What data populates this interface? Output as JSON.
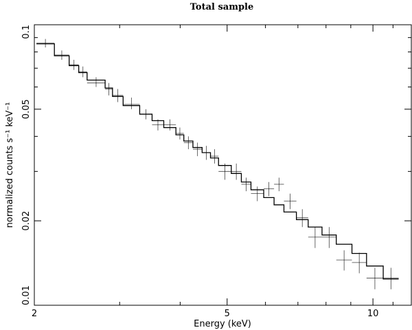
{
  "chart_data": {
    "type": "line",
    "title": "Total sample",
    "xlabel": "Energy (keV)",
    "ylabel": "normalized counts s⁻¹ keV⁻¹",
    "x_scale": "log",
    "y_scale": "log",
    "xlim": [
      2,
      12
    ],
    "ylim": [
      0.01,
      0.1
    ],
    "x_tick_labels": [
      {
        "value": 2,
        "label": "2"
      },
      {
        "value": 5,
        "label": "5"
      },
      {
        "value": 10,
        "label": "10"
      }
    ],
    "x_minor_ticks": [
      3,
      4,
      6,
      7,
      8,
      9,
      11
    ],
    "y_tick_labels": [
      {
        "value": 0.01,
        "label": "0.01"
      },
      {
        "value": 0.02,
        "label": "0.02"
      },
      {
        "value": 0.05,
        "label": "0.05"
      },
      {
        "value": 0.1,
        "label": "0.1"
      }
    ],
    "y_minor_ticks": [
      0.03,
      0.04,
      0.06,
      0.07,
      0.08,
      0.09
    ],
    "grid": false,
    "series": [
      {
        "kind": "data-crosses",
        "color": "#000000",
        "points": [
          {
            "x_lo": 2.02,
            "x_hi": 2.2,
            "y": 0.086,
            "y_lo": 0.083,
            "y_hi": 0.089
          },
          {
            "x_lo": 2.2,
            "x_hi": 2.36,
            "y": 0.078,
            "y_lo": 0.075,
            "y_hi": 0.081
          },
          {
            "x_lo": 2.36,
            "x_hi": 2.47,
            "y": 0.072,
            "y_lo": 0.069,
            "y_hi": 0.075
          },
          {
            "x_lo": 2.47,
            "x_hi": 2.57,
            "y": 0.068,
            "y_lo": 0.065,
            "y_hi": 0.071
          },
          {
            "x_lo": 2.57,
            "x_hi": 2.8,
            "y": 0.062,
            "y_lo": 0.06,
            "y_hi": 0.065
          },
          {
            "x_lo": 2.8,
            "x_hi": 2.9,
            "y": 0.059,
            "y_lo": 0.056,
            "y_hi": 0.062
          },
          {
            "x_lo": 2.9,
            "x_hi": 3.05,
            "y": 0.056,
            "y_lo": 0.053,
            "y_hi": 0.059
          },
          {
            "x_lo": 3.05,
            "x_hi": 3.3,
            "y": 0.052,
            "y_lo": 0.05,
            "y_hi": 0.055
          },
          {
            "x_lo": 3.3,
            "x_hi": 3.5,
            "y": 0.048,
            "y_lo": 0.046,
            "y_hi": 0.05
          },
          {
            "x_lo": 3.5,
            "x_hi": 3.7,
            "y": 0.044,
            "y_lo": 0.042,
            "y_hi": 0.046
          },
          {
            "x_lo": 3.7,
            "x_hi": 3.92,
            "y": 0.044,
            "y_lo": 0.042,
            "y_hi": 0.046
          },
          {
            "x_lo": 3.92,
            "x_hi": 4.07,
            "y": 0.041,
            "y_lo": 0.039,
            "y_hi": 0.043
          },
          {
            "x_lo": 4.07,
            "x_hi": 4.25,
            "y": 0.038,
            "y_lo": 0.036,
            "y_hi": 0.04
          },
          {
            "x_lo": 4.25,
            "x_hi": 4.44,
            "y": 0.036,
            "y_lo": 0.034,
            "y_hi": 0.038
          },
          {
            "x_lo": 4.44,
            "x_hi": 4.62,
            "y": 0.035,
            "y_lo": 0.033,
            "y_hi": 0.037
          },
          {
            "x_lo": 4.62,
            "x_hi": 4.8,
            "y": 0.034,
            "y_lo": 0.032,
            "y_hi": 0.036
          },
          {
            "x_lo": 4.8,
            "x_hi": 5.1,
            "y": 0.03,
            "y_lo": 0.028,
            "y_hi": 0.032
          },
          {
            "x_lo": 5.1,
            "x_hi": 5.35,
            "y": 0.03,
            "y_lo": 0.028,
            "y_hi": 0.032
          },
          {
            "x_lo": 5.35,
            "x_hi": 5.6,
            "y": 0.027,
            "y_lo": 0.0255,
            "y_hi": 0.0285
          },
          {
            "x_lo": 5.6,
            "x_hi": 5.95,
            "y": 0.025,
            "y_lo": 0.0235,
            "y_hi": 0.0265
          },
          {
            "x_lo": 5.95,
            "x_hi": 6.25,
            "y": 0.026,
            "y_lo": 0.0245,
            "y_hi": 0.0275
          },
          {
            "x_lo": 6.25,
            "x_hi": 6.55,
            "y": 0.027,
            "y_lo": 0.0255,
            "y_hi": 0.0285
          },
          {
            "x_lo": 6.55,
            "x_hi": 6.95,
            "y": 0.0235,
            "y_lo": 0.022,
            "y_hi": 0.025
          },
          {
            "x_lo": 6.95,
            "x_hi": 7.35,
            "y": 0.0205,
            "y_lo": 0.019,
            "y_hi": 0.022
          },
          {
            "x_lo": 7.35,
            "x_hi": 7.85,
            "y": 0.0175,
            "y_lo": 0.016,
            "y_hi": 0.019
          },
          {
            "x_lo": 7.85,
            "x_hi": 8.4,
            "y": 0.0175,
            "y_lo": 0.016,
            "y_hi": 0.019
          },
          {
            "x_lo": 8.4,
            "x_hi": 9.05,
            "y": 0.0145,
            "y_lo": 0.0133,
            "y_hi": 0.0157
          },
          {
            "x_lo": 9.05,
            "x_hi": 9.7,
            "y": 0.0142,
            "y_lo": 0.013,
            "y_hi": 0.0154
          },
          {
            "x_lo": 9.7,
            "x_hi": 10.5,
            "y": 0.0125,
            "y_lo": 0.0114,
            "y_hi": 0.0136
          },
          {
            "x_lo": 10.5,
            "x_hi": 11.3,
            "y": 0.0125,
            "y_lo": 0.0114,
            "y_hi": 0.0136
          }
        ]
      },
      {
        "kind": "model-histogram",
        "color": "#000000",
        "steps": [
          {
            "x_lo": 2.02,
            "x_hi": 2.2,
            "y": 0.0855
          },
          {
            "x_lo": 2.2,
            "x_hi": 2.36,
            "y": 0.0775
          },
          {
            "x_lo": 2.36,
            "x_hi": 2.47,
            "y": 0.0715
          },
          {
            "x_lo": 2.47,
            "x_hi": 2.57,
            "y": 0.0675
          },
          {
            "x_lo": 2.57,
            "x_hi": 2.8,
            "y": 0.0635
          },
          {
            "x_lo": 2.8,
            "x_hi": 2.9,
            "y": 0.0595
          },
          {
            "x_lo": 2.9,
            "x_hi": 3.05,
            "y": 0.0555
          },
          {
            "x_lo": 3.05,
            "x_hi": 3.3,
            "y": 0.0515
          },
          {
            "x_lo": 3.3,
            "x_hi": 3.5,
            "y": 0.048
          },
          {
            "x_lo": 3.5,
            "x_hi": 3.7,
            "y": 0.0455
          },
          {
            "x_lo": 3.7,
            "x_hi": 3.92,
            "y": 0.043
          },
          {
            "x_lo": 3.92,
            "x_hi": 4.07,
            "y": 0.0405
          },
          {
            "x_lo": 4.07,
            "x_hi": 4.25,
            "y": 0.0385
          },
          {
            "x_lo": 4.25,
            "x_hi": 4.44,
            "y": 0.0365
          },
          {
            "x_lo": 4.44,
            "x_hi": 4.62,
            "y": 0.035
          },
          {
            "x_lo": 4.62,
            "x_hi": 4.8,
            "y": 0.0335
          },
          {
            "x_lo": 4.8,
            "x_hi": 5.1,
            "y": 0.0315
          },
          {
            "x_lo": 5.1,
            "x_hi": 5.35,
            "y": 0.0295
          },
          {
            "x_lo": 5.35,
            "x_hi": 5.6,
            "y": 0.0275
          },
          {
            "x_lo": 5.6,
            "x_hi": 5.95,
            "y": 0.0258
          },
          {
            "x_lo": 5.95,
            "x_hi": 6.25,
            "y": 0.0242
          },
          {
            "x_lo": 6.25,
            "x_hi": 6.55,
            "y": 0.0228
          },
          {
            "x_lo": 6.55,
            "x_hi": 6.95,
            "y": 0.0215
          },
          {
            "x_lo": 6.95,
            "x_hi": 7.35,
            "y": 0.0202
          },
          {
            "x_lo": 7.35,
            "x_hi": 7.85,
            "y": 0.019
          },
          {
            "x_lo": 7.85,
            "x_hi": 8.4,
            "y": 0.0178
          },
          {
            "x_lo": 8.4,
            "x_hi": 9.05,
            "y": 0.0165
          },
          {
            "x_lo": 9.05,
            "x_hi": 9.7,
            "y": 0.0153
          },
          {
            "x_lo": 9.7,
            "x_hi": 10.5,
            "y": 0.0138
          },
          {
            "x_lo": 10.5,
            "x_hi": 11.3,
            "y": 0.0124
          }
        ]
      }
    ]
  }
}
